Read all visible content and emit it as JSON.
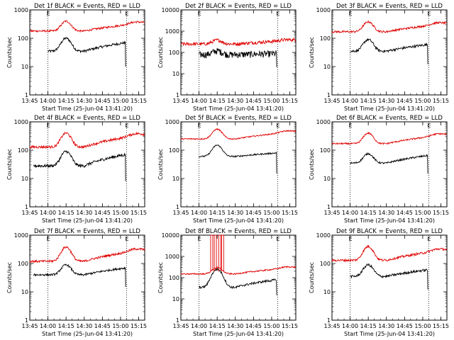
{
  "chart_data": [
    {
      "type": "line",
      "title": "Det 1f BLACK = Events, RED = LLD",
      "xlabel": "Start Time (25-Jun-04 13:41:20)",
      "ylabel": "Counts/sec",
      "yscale": "log",
      "ylim": [
        1,
        1000
      ],
      "yticks": [
        "1",
        "10",
        "100",
        "1000"
      ],
      "xlim": [
        13.75,
        15.333
      ],
      "xticks": [
        "13:45",
        "14:00",
        "14:15",
        "14:30",
        "14:45",
        "15:00",
        "15:15"
      ],
      "markers": [
        14.0,
        15.083
      ],
      "marker_label": "E",
      "flare_peak": 14.25,
      "series": [
        {
          "name": "Events",
          "color": "#000000",
          "start": 14.0,
          "base": 35,
          "peak": 100,
          "end_level": 70,
          "end_cut": 15.07,
          "drop": 10,
          "noise": 0.1
        },
        {
          "name": "LLD",
          "color": "#e00000",
          "start": 13.75,
          "base": 180,
          "peak": 400,
          "end_level": 350,
          "noise": 0.08
        }
      ]
    },
    {
      "type": "line",
      "title": "Det 2f BLACK = Events, RED = LLD",
      "xlabel": "Start Time (25-Jun-04 13:41:20)",
      "ylabel": "Counts/sec",
      "yscale": "log",
      "ylim": [
        1,
        10000
      ],
      "yticks": [
        "1",
        "10",
        "100",
        "1000",
        "10000"
      ],
      "xlim": [
        13.75,
        15.333
      ],
      "xticks": [
        "13:45",
        "14:00",
        "14:15",
        "14:30",
        "14:45",
        "15:00",
        "15:15"
      ],
      "markers": [
        14.0,
        15.083
      ],
      "marker_label": "E",
      "flare_peak": 14.25,
      "series": [
        {
          "name": "Events",
          "color": "#000000",
          "start": 14.0,
          "base": 80,
          "peak": 120,
          "end_level": 90,
          "end_cut": 15.07,
          "drop": 20,
          "noise": 0.35
        },
        {
          "name": "LLD",
          "color": "#e00000",
          "start": 13.75,
          "base": 250,
          "peak": 380,
          "end_level": 380,
          "noise": 0.18
        }
      ]
    },
    {
      "type": "line",
      "title": "Det 3f BLACK = Events, RED = LLD",
      "xlabel": "Start Time (25-Jun-04 13:41:20)",
      "ylabel": "Counts/sec",
      "yscale": "log",
      "ylim": [
        1,
        1000
      ],
      "yticks": [
        "1",
        "10",
        "100",
        "1000"
      ],
      "xlim": [
        13.75,
        15.333
      ],
      "xticks": [
        "13:45",
        "14:00",
        "14:15",
        "14:30",
        "14:45",
        "15:00",
        "15:15"
      ],
      "markers": [
        14.0,
        15.083
      ],
      "marker_label": "E",
      "flare_peak": 14.25,
      "series": [
        {
          "name": "Events",
          "color": "#000000",
          "start": 14.0,
          "base": 35,
          "peak": 90,
          "end_level": 60,
          "end_cut": 15.07,
          "drop": 12,
          "noise": 0.1
        },
        {
          "name": "LLD",
          "color": "#e00000",
          "start": 13.75,
          "base": 170,
          "peak": 380,
          "end_level": 330,
          "noise": 0.08
        }
      ]
    },
    {
      "type": "line",
      "title": "Det 4f BLACK = Events, RED = LLD",
      "xlabel": "Start Time (25-Jun-04 13:41:20)",
      "ylabel": "Counts/sec",
      "yscale": "log",
      "ylim": [
        1,
        1000
      ],
      "yticks": [
        "1",
        "10",
        "100",
        "1000"
      ],
      "xlim": [
        13.75,
        15.333
      ],
      "xticks": [
        "13:45",
        "14:00",
        "14:15",
        "14:30",
        "14:45",
        "15:00",
        "15:15"
      ],
      "markers": [
        14.0,
        15.083
      ],
      "marker_label": "E",
      "flare_peak": 14.25,
      "series": [
        {
          "name": "Events",
          "color": "#000000",
          "start": 13.8,
          "base": 28,
          "peak": 90,
          "end_level": 70,
          "end_cut": 15.07,
          "drop": 8,
          "noise": 0.12
        },
        {
          "name": "LLD",
          "color": "#e00000",
          "start": 13.75,
          "base": 130,
          "peak": 400,
          "end_level": 350,
          "noise": 0.1
        }
      ]
    },
    {
      "type": "line",
      "title": "Det 5f BLACK = Events, RED = LLD",
      "xlabel": "Start Time (25-Jun-04 13:41:20)",
      "ylabel": "Counts/sec",
      "yscale": "log",
      "ylim": [
        1,
        1000
      ],
      "yticks": [
        "1",
        "10",
        "100",
        "1000"
      ],
      "xlim": [
        13.75,
        15.333
      ],
      "xticks": [
        "13:45",
        "14:00",
        "14:15",
        "14:30",
        "14:45",
        "15:00",
        "15:15"
      ],
      "markers": [
        14.0,
        15.083
      ],
      "marker_label": "E",
      "flare_peak": 14.25,
      "series": [
        {
          "name": "Events",
          "color": "#000000",
          "start": 14.0,
          "base": 60,
          "peak": 150,
          "end_level": 80,
          "end_cut": 15.07,
          "drop": 15,
          "noise": 0.06
        },
        {
          "name": "LLD",
          "color": "#e00000",
          "start": 13.75,
          "base": 250,
          "peak": 550,
          "end_level": 450,
          "noise": 0.05
        }
      ]
    },
    {
      "type": "line",
      "title": "Det 6f BLACK = Events, RED = LLD",
      "xlabel": "Start Time (25-Jun-04 13:41:20)",
      "ylabel": "Counts/sec",
      "yscale": "log",
      "ylim": [
        1,
        1000
      ],
      "yticks": [
        "1",
        "10",
        "100",
        "1000"
      ],
      "xlim": [
        13.75,
        15.333
      ],
      "xticks": [
        "13:45",
        "14:00",
        "14:15",
        "14:30",
        "14:45",
        "15:00",
        "15:15"
      ],
      "markers": [
        14.0,
        15.083
      ],
      "marker_label": "E",
      "flare_peak": 14.25,
      "series": [
        {
          "name": "Events",
          "color": "#000000",
          "start": 14.0,
          "base": 35,
          "peak": 75,
          "end_level": 65,
          "end_cut": 15.07,
          "drop": 15,
          "noise": 0.07
        },
        {
          "name": "LLD",
          "color": "#e00000",
          "start": 13.75,
          "base": 170,
          "peak": 400,
          "end_level": 350,
          "noise": 0.06
        }
      ]
    },
    {
      "type": "line",
      "title": "Det 7f BLACK = Events, RED = LLD",
      "xlabel": "Start Time (25-Jun-04 13:41:20)",
      "ylabel": "Counts/sec",
      "yscale": "log",
      "ylim": [
        1,
        1000
      ],
      "yticks": [
        "1",
        "10",
        "100",
        "1000"
      ],
      "xlim": [
        13.75,
        15.333
      ],
      "xticks": [
        "13:45",
        "14:00",
        "14:15",
        "14:30",
        "14:45",
        "15:00",
        "15:15"
      ],
      "markers": [
        14.0,
        15.083
      ],
      "marker_label": "E",
      "flare_peak": 14.25,
      "series": [
        {
          "name": "Events",
          "color": "#000000",
          "start": 13.8,
          "base": 40,
          "peak": 90,
          "end_level": 70,
          "end_cut": 15.07,
          "drop": 15,
          "noise": 0.08
        },
        {
          "name": "LLD",
          "color": "#e00000",
          "start": 13.75,
          "base": 120,
          "peak": 380,
          "end_level": 300,
          "noise": 0.09
        }
      ]
    },
    {
      "type": "line",
      "title": "Det 8f BLACK = Events, RED = LLD",
      "xlabel": "Start Time (25-Jun-04 13:41:20)",
      "ylabel": "Counts/sec",
      "yscale": "log",
      "ylim": [
        1,
        10000
      ],
      "yticks": [
        "1",
        "10",
        "100",
        "1000",
        "10000"
      ],
      "xlim": [
        13.75,
        15.333
      ],
      "xticks": [
        "13:45",
        "14:00",
        "14:15",
        "14:30",
        "14:45",
        "15:00",
        "15:15"
      ],
      "markers": [
        14.0,
        15.083
      ],
      "marker_label": "E",
      "flare_peak": 14.25,
      "series": [
        {
          "name": "Events",
          "color": "#000000",
          "start": 14.0,
          "base": 35,
          "peak": 250,
          "end_level": 80,
          "end_cut": 15.07,
          "drop": 15,
          "noise": 0.12
        },
        {
          "name": "LLD",
          "color": "#e00000",
          "start": 13.75,
          "base": 150,
          "peak": 300,
          "end_level": 300,
          "noise": 0.07,
          "spikes": [
            14.16,
            14.21,
            14.27,
            14.31
          ],
          "spike_value": 10000
        }
      ]
    },
    {
      "type": "line",
      "title": "Det 9f BLACK = Events, RED = LLD",
      "xlabel": "Start Time (25-Jun-04 13:41:20)",
      "ylabel": "Counts/sec",
      "yscale": "log",
      "ylim": [
        1,
        1000
      ],
      "yticks": [
        "1",
        "10",
        "100",
        "1000"
      ],
      "xlim": [
        13.75,
        15.333
      ],
      "xticks": [
        "13:45",
        "14:00",
        "14:15",
        "14:30",
        "14:45",
        "15:00",
        "15:15"
      ],
      "markers": [
        14.0,
        15.083
      ],
      "marker_label": "E",
      "flare_peak": 14.25,
      "series": [
        {
          "name": "Events",
          "color": "#000000",
          "start": 14.0,
          "base": 35,
          "peak": 90,
          "end_level": 60,
          "end_cut": 15.07,
          "drop": 12,
          "noise": 0.1
        },
        {
          "name": "LLD",
          "color": "#e00000",
          "start": 13.75,
          "base": 130,
          "peak": 400,
          "end_level": 300,
          "noise": 0.09
        }
      ]
    }
  ]
}
